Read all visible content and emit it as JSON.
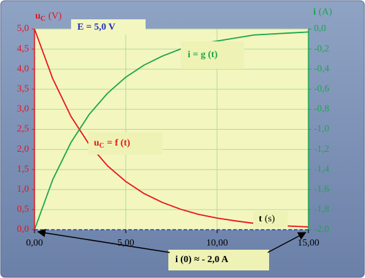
{
  "chart_data": {
    "type": "line",
    "x": [
      0,
      1,
      2,
      3,
      4,
      5,
      6,
      7,
      8,
      9,
      10,
      11,
      12,
      13,
      14,
      15
    ],
    "series": [
      {
        "color": "#e8141c",
        "values": [
          5.0,
          3.76,
          2.82,
          2.12,
          1.59,
          1.2,
          0.9,
          0.68,
          0.51,
          0.38,
          0.29,
          0.22,
          0.16,
          0.12,
          0.09,
          0.07
        ]
      },
      {
        "color": "#1aa64a",
        "axis": "y2",
        "values": [
          -2.0,
          -1.5,
          -1.13,
          -0.85,
          -0.64,
          -0.48,
          -0.36,
          -0.27,
          -0.2,
          -0.15,
          -0.12,
          -0.09,
          -0.06,
          -0.05,
          -0.04,
          -0.03
        ]
      }
    ],
    "xlim": [
      0,
      15
    ],
    "xticks": [
      {
        "value": 0,
        "label": "0,00"
      },
      {
        "value": 5,
        "label": "5,00"
      },
      {
        "value": 10,
        "label": "10,00"
      },
      {
        "value": 15,
        "label": "15,00"
      }
    ],
    "ylim": [
      0,
      5
    ],
    "yticks": [
      {
        "value": 0,
        "label": "0,0"
      },
      {
        "value": 0.5,
        "label": "0,5"
      },
      {
        "value": 1,
        "label": "1,0"
      },
      {
        "value": 1.5,
        "label": "1,5"
      },
      {
        "value": 2,
        "label": "2,0"
      },
      {
        "value": 2.5,
        "label": "2,5"
      },
      {
        "value": 3,
        "label": "3,0"
      },
      {
        "value": 3.5,
        "label": "3,5"
      },
      {
        "value": 4,
        "label": "4,0"
      },
      {
        "value": 4.5,
        "label": "4,5"
      },
      {
        "value": 5,
        "label": "5,0"
      }
    ],
    "y2lim": [
      -2,
      0
    ],
    "y2ticks": [
      {
        "value": 0,
        "label": "0,0"
      },
      {
        "value": -0.2,
        "label": "-0,2"
      },
      {
        "value": -0.4,
        "label": "-0,4"
      },
      {
        "value": -0.6,
        "label": "-0,6"
      },
      {
        "value": -0.8,
        "label": "-0,8"
      },
      {
        "value": -1,
        "label": "-1,0"
      },
      {
        "value": -1.2,
        "label": "-1,2"
      },
      {
        "value": -1.4,
        "label": "-1,4"
      },
      {
        "value": -1.6,
        "label": "-1,6"
      },
      {
        "value": -1.8,
        "label": "-1,8"
      },
      {
        "value": -2,
        "label": "-2,0"
      }
    ],
    "grid": true,
    "y_label": {
      "symbol": "u",
      "subscript": "C",
      "unit": "(V)"
    },
    "y2_label": {
      "symbol": "i",
      "unit": "(A)"
    },
    "x_label": {
      "symbol": "t",
      "unit": "(s)"
    },
    "source_label": "E = 5,0 V",
    "green_curve_label": "i = g (t)",
    "red_curve_label": {
      "symbol": "u",
      "subscript": "C",
      "rest": "= f (t)"
    },
    "initial_current_label": "i (0)  ≈ - 2,0 A"
  }
}
